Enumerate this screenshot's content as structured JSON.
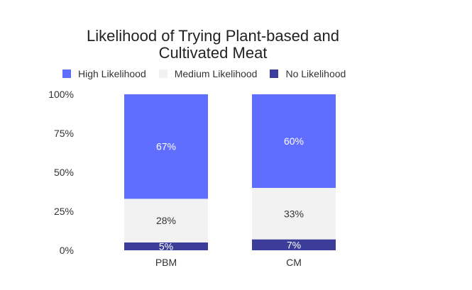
{
  "chart_data": {
    "type": "bar",
    "stacked": true,
    "title_lines": [
      "Likelihood of Trying Plant-based and",
      "Cultivated Meat"
    ],
    "categories": [
      "PBM",
      "CM"
    ],
    "series": [
      {
        "name": "No Likelihood",
        "values": [
          5,
          7
        ],
        "labels": [
          "5%",
          "7%"
        ],
        "color": "#3b3d99"
      },
      {
        "name": "Medium Likelihood",
        "values": [
          28,
          33
        ],
        "labels": [
          "28%",
          "33%"
        ],
        "color": "#f2f2f2"
      },
      {
        "name": "High Likelihood",
        "values": [
          67,
          60
        ],
        "labels": [
          "67%",
          "60%"
        ],
        "color": "#5f6eff"
      }
    ],
    "legend_order": [
      "High Likelihood",
      "Medium Likelihood",
      "No Likelihood"
    ],
    "legend_position": "top",
    "ylim": [
      0,
      100
    ],
    "yticks": [
      0,
      25,
      50,
      75,
      100
    ],
    "ytick_labels": [
      "0%",
      "25%",
      "50%",
      "75%",
      "100%"
    ],
    "grid": false,
    "label_colors": {
      "on_dark": "#ffffff",
      "on_light": "#333333"
    }
  }
}
